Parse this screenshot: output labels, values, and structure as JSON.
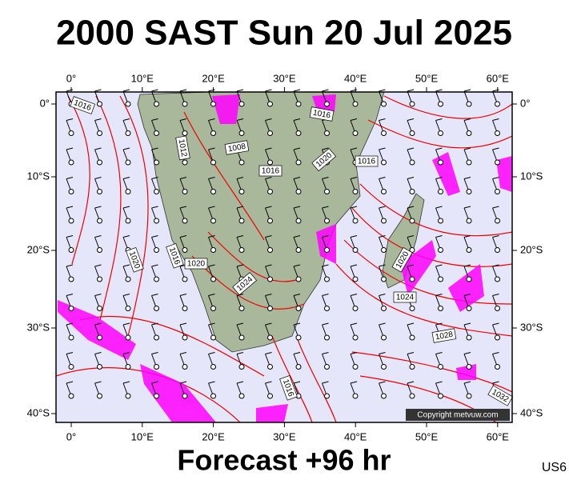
{
  "header": {
    "title": "2000 SAST Sun 20 Jul 2025"
  },
  "map": {
    "lon_labels": [
      "0°",
      "10°E",
      "20°E",
      "30°E",
      "40°E",
      "50°E",
      "60°E"
    ],
    "lat_labels": [
      "0°",
      "10°S",
      "20°S",
      "30°S",
      "40°S"
    ],
    "isobar_labels": [
      "1016",
      "1012",
      "1008",
      "1016",
      "1020",
      "1016",
      "1016",
      "1020",
      "1016",
      "1020",
      "1024",
      "1020",
      "1024",
      "1028",
      "1016",
      "1032"
    ],
    "copyright": "Copyright metvuw.com"
  },
  "footer": {
    "forecast": "Forecast +96 hr",
    "code": "US6"
  }
}
